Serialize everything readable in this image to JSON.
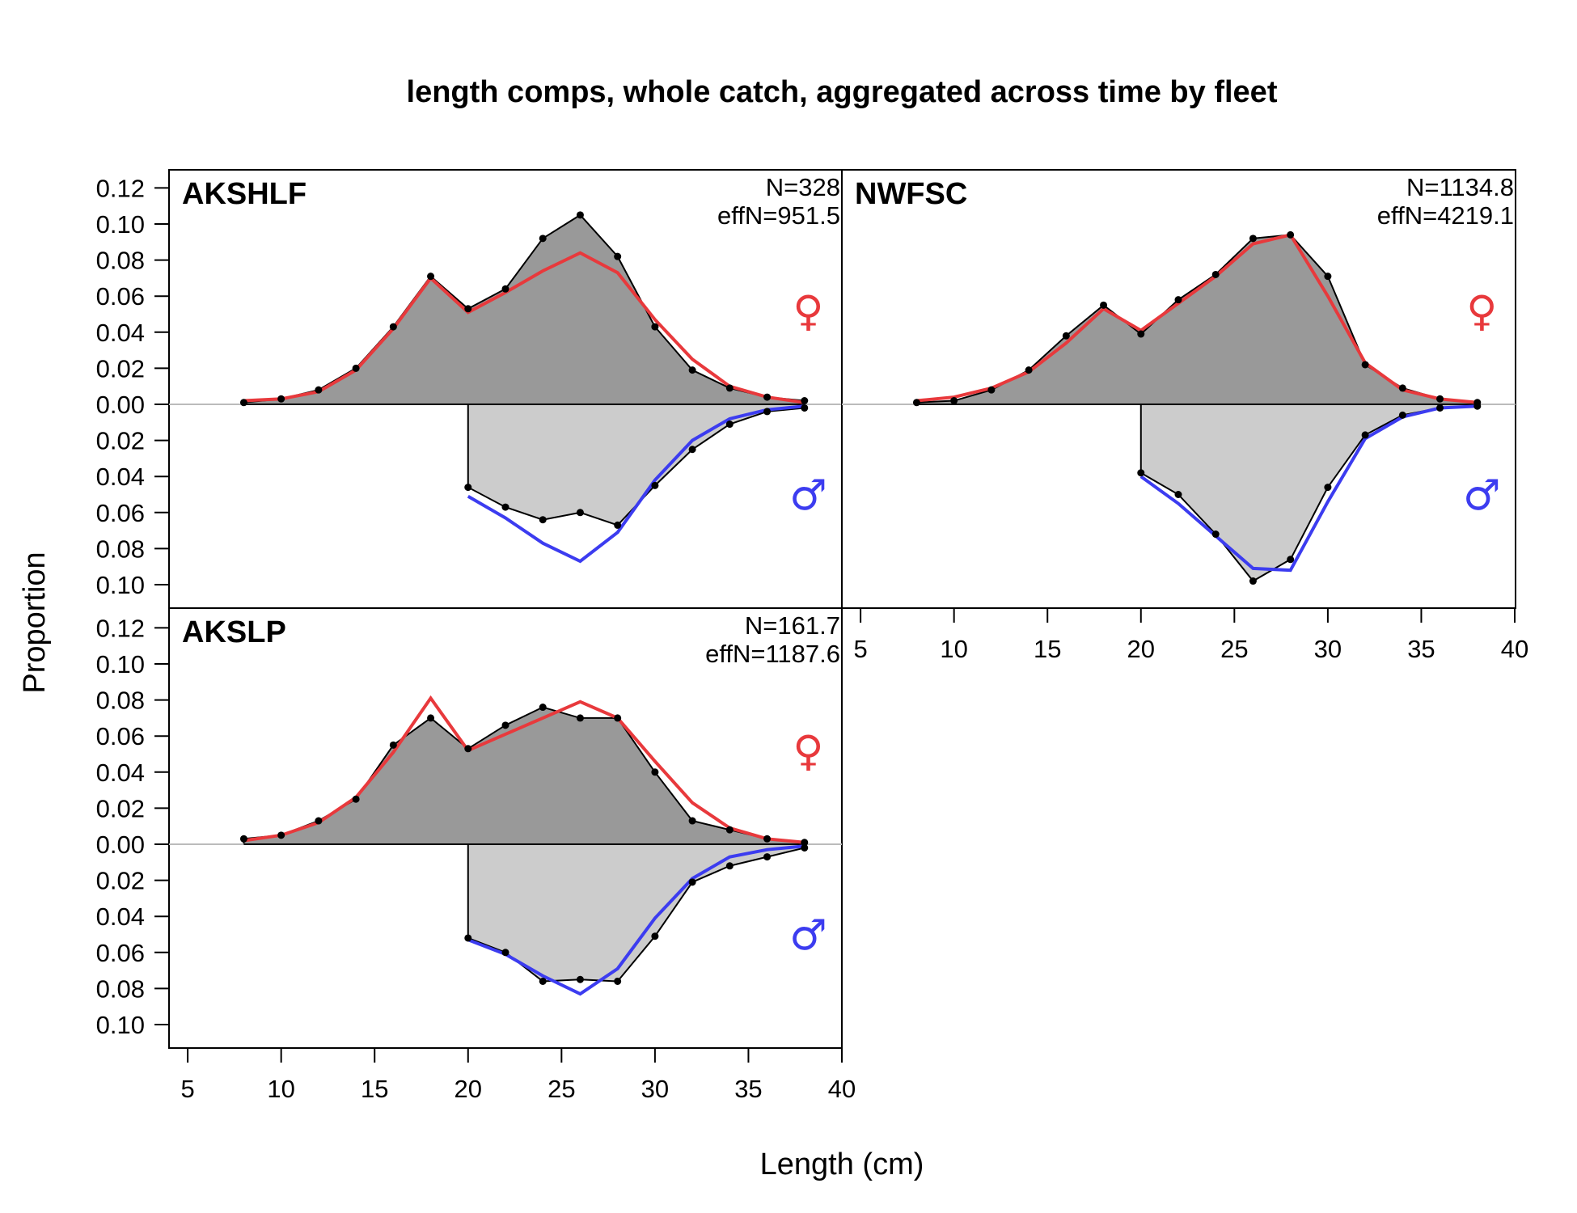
{
  "chart_data": {
    "type": "area",
    "title": "length comps, whole catch, aggregated across time by fleet",
    "xlabel": "Length (cm)",
    "ylabel": "Proportion",
    "xlim": [
      5,
      40
    ],
    "x_ticks": [
      "5",
      "10",
      "15",
      "20",
      "25",
      "30",
      "35",
      "40"
    ],
    "y_ticks_upper": [
      "0.12",
      "0.10",
      "0.08",
      "0.06",
      "0.04",
      "0.02",
      "0.00"
    ],
    "y_ticks_lower": [
      "0.02",
      "0.04",
      "0.06",
      "0.08",
      "0.10"
    ],
    "colors": {
      "female_obs_fill": "#999999",
      "male_obs_fill": "#cccccc",
      "female_exp": "#e8393c",
      "male_exp": "#3c3cf0",
      "zero_line": "#bbbbbb",
      "points": "#000000"
    },
    "sex_symbols": {
      "female": "♀",
      "male": "♂"
    },
    "panels": [
      {
        "name": "AKSHLF",
        "N": "N=328",
        "effN": "effN=951.5",
        "female_obs": {
          "x": [
            8,
            10,
            12,
            14,
            16,
            18,
            20,
            22,
            24,
            26,
            28,
            30,
            32,
            34,
            36,
            38
          ],
          "y": [
            0.001,
            0.003,
            0.008,
            0.02,
            0.043,
            0.071,
            0.053,
            0.064,
            0.092,
            0.105,
            0.082,
            0.043,
            0.019,
            0.009,
            0.004,
            0.002
          ]
        },
        "female_exp": {
          "x": [
            8,
            10,
            12,
            14,
            16,
            18,
            20,
            22,
            24,
            26,
            28,
            30,
            32,
            34,
            36,
            38
          ],
          "y": [
            0.002,
            0.003,
            0.007,
            0.019,
            0.042,
            0.07,
            0.051,
            0.062,
            0.074,
            0.084,
            0.073,
            0.047,
            0.025,
            0.01,
            0.004,
            0.001
          ]
        },
        "male_obs": {
          "x": [
            20,
            22,
            24,
            26,
            28,
            30,
            32,
            34,
            36,
            38
          ],
          "y": [
            0.046,
            0.057,
            0.064,
            0.06,
            0.067,
            0.045,
            0.025,
            0.011,
            0.004,
            0.002
          ]
        },
        "male_exp": {
          "x": [
            20,
            22,
            24,
            26,
            28,
            30,
            32,
            34,
            36,
            38
          ],
          "y": [
            0.051,
            0.063,
            0.077,
            0.087,
            0.071,
            0.042,
            0.02,
            0.008,
            0.003,
            0.001
          ]
        }
      },
      {
        "name": "NWFSC",
        "N": "N=1134.8",
        "effN": "effN=4219.1",
        "female_obs": {
          "x": [
            8,
            10,
            12,
            14,
            16,
            18,
            20,
            22,
            24,
            26,
            28,
            30,
            32,
            34,
            36,
            38
          ],
          "y": [
            0.001,
            0.002,
            0.008,
            0.019,
            0.038,
            0.055,
            0.039,
            0.058,
            0.072,
            0.092,
            0.094,
            0.071,
            0.022,
            0.009,
            0.003,
            0.001
          ]
        },
        "female_exp": {
          "x": [
            8,
            10,
            12,
            14,
            16,
            18,
            20,
            22,
            24,
            26,
            28,
            30,
            32,
            34,
            36,
            38
          ],
          "y": [
            0.002,
            0.004,
            0.009,
            0.018,
            0.034,
            0.053,
            0.041,
            0.056,
            0.071,
            0.089,
            0.094,
            0.06,
            0.023,
            0.008,
            0.003,
            0.001
          ]
        },
        "male_obs": {
          "x": [
            20,
            22,
            24,
            26,
            28,
            30,
            32,
            34,
            36,
            38
          ],
          "y": [
            0.038,
            0.05,
            0.072,
            0.098,
            0.086,
            0.046,
            0.017,
            0.006,
            0.002,
            0.001
          ]
        },
        "male_exp": {
          "x": [
            20,
            22,
            24,
            26,
            28,
            30,
            32,
            34,
            36,
            38
          ],
          "y": [
            0.04,
            0.055,
            0.073,
            0.091,
            0.092,
            0.054,
            0.019,
            0.007,
            0.002,
            0.001
          ]
        }
      },
      {
        "name": "AKSLP",
        "N": "N=161.7",
        "effN": "effN=1187.6",
        "female_obs": {
          "x": [
            8,
            10,
            12,
            14,
            16,
            18,
            20,
            22,
            24,
            26,
            28,
            30,
            32,
            34,
            36,
            38
          ],
          "y": [
            0.003,
            0.005,
            0.013,
            0.025,
            0.055,
            0.07,
            0.053,
            0.066,
            0.076,
            0.07,
            0.07,
            0.04,
            0.013,
            0.008,
            0.003,
            0.001
          ]
        },
        "female_exp": {
          "x": [
            8,
            10,
            12,
            14,
            16,
            18,
            20,
            22,
            24,
            26,
            28,
            30,
            32,
            34,
            36,
            38
          ],
          "y": [
            0.002,
            0.005,
            0.012,
            0.026,
            0.051,
            0.081,
            0.052,
            0.061,
            0.07,
            0.079,
            0.07,
            0.046,
            0.023,
            0.009,
            0.003,
            0.001
          ]
        },
        "male_obs": {
          "x": [
            20,
            22,
            24,
            26,
            28,
            30,
            32,
            34,
            36,
            38
          ],
          "y": [
            0.052,
            0.06,
            0.076,
            0.075,
            0.076,
            0.051,
            0.021,
            0.012,
            0.007,
            0.002
          ]
        },
        "male_exp": {
          "x": [
            20,
            22,
            24,
            26,
            28,
            30,
            32,
            34,
            36,
            38
          ],
          "y": [
            0.053,
            0.061,
            0.073,
            0.083,
            0.069,
            0.041,
            0.019,
            0.007,
            0.003,
            0.001
          ]
        }
      }
    ]
  }
}
